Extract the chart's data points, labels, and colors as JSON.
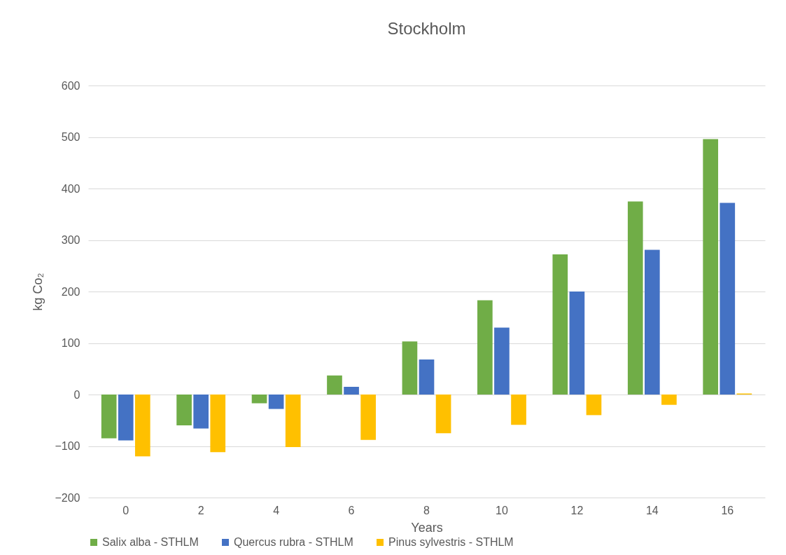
{
  "chart_data": {
    "type": "bar",
    "title": "Stockholm",
    "xlabel": "Years",
    "ylabel": "kg Co₂",
    "categories": [
      "0",
      "2",
      "4",
      "6",
      "8",
      "10",
      "12",
      "14",
      "16"
    ],
    "series": [
      {
        "name": "Salix alba - STHLM",
        "color": "#70ad47",
        "values": [
          -85,
          -60,
          -17,
          37,
          103,
          183,
          272,
          375,
          496
        ]
      },
      {
        "name": "Quercus rubra - STHLM",
        "color": "#4472c4",
        "values": [
          -89,
          -66,
          -28,
          15,
          68,
          130,
          200,
          281,
          372
        ]
      },
      {
        "name": "Pinus sylvestris - STHLM",
        "color": "#ffc000",
        "values": [
          -120,
          -112,
          -102,
          -88,
          -75,
          -59,
          -40,
          -20,
          2
        ]
      }
    ],
    "ylim": [
      -200,
      600
    ],
    "yticks": [
      -200,
      -100,
      0,
      100,
      200,
      300,
      400,
      500,
      600
    ],
    "grid": "y",
    "legend": "bottom"
  }
}
